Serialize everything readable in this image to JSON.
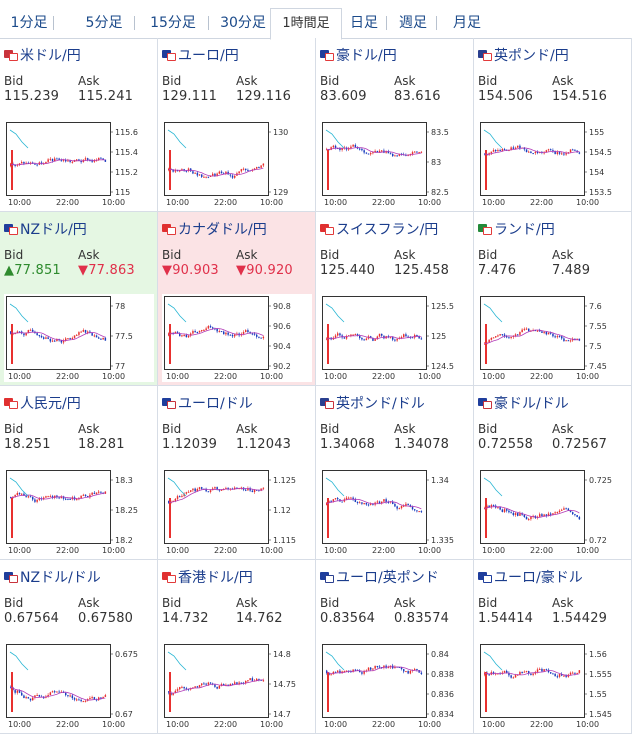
{
  "tabs": [
    "1分足",
    "5分足",
    "15分足",
    "30分足",
    "1時間足",
    "日足",
    "週足",
    "月足"
  ],
  "active_tab": 4,
  "bid_label": "Bid",
  "ask_label": "Ask",
  "x_labels": [
    "10:00",
    "22:00",
    "10:00"
  ],
  "colors": {
    "up": "#e8302e",
    "down": "#1a3dbf",
    "ma": "#b23bb8",
    "cyan": "#27b6d3",
    "frame": "#333"
  },
  "pairs": [
    {
      "name": "米ドル/円",
      "flags": [
        "us",
        "jp"
      ],
      "bid": "115.239",
      "ask": "115.241",
      "ticks": [
        "115.6",
        "115.4",
        "115.2",
        "115"
      ],
      "state": "none"
    },
    {
      "name": "ユーロ/円",
      "flags": [
        "eu",
        "jp"
      ],
      "bid": "129.111",
      "ask": "129.116",
      "ticks": [
        "130",
        "129"
      ],
      "state": "none"
    },
    {
      "name": "豪ドル/円",
      "flags": [
        "au",
        "jp"
      ],
      "bid": "83.609",
      "ask": "83.616",
      "ticks": [
        "83.5",
        "83",
        "82.5"
      ],
      "state": "none"
    },
    {
      "name": "英ポンド/円",
      "flags": [
        "gb",
        "jp"
      ],
      "bid": "154.506",
      "ask": "154.516",
      "ticks": [
        "155",
        "154.5",
        "154",
        "153.5"
      ],
      "state": "none"
    },
    {
      "name": "NZドル/円",
      "flags": [
        "nz",
        "jp"
      ],
      "bid": "▲77.851",
      "ask": "▼77.863",
      "ticks": [
        "78",
        "77.5",
        "77"
      ],
      "state": "up"
    },
    {
      "name": "カナダドル/円",
      "flags": [
        "ca",
        "jp"
      ],
      "bid": "▼90.903",
      "ask": "▼90.920",
      "ticks": [
        "90.8",
        "90.6",
        "90.4",
        "90.2"
      ],
      "state": "down"
    },
    {
      "name": "スイスフラン/円",
      "flags": [
        "ch",
        "jp"
      ],
      "bid": "125.440",
      "ask": "125.458",
      "ticks": [
        "125.5",
        "125",
        "124.5"
      ],
      "state": "none"
    },
    {
      "name": "ランド/円",
      "flags": [
        "za",
        "jp"
      ],
      "bid": "7.476",
      "ask": "7.489",
      "ticks": [
        "7.6",
        "7.55",
        "7.5",
        "7.45"
      ],
      "state": "none"
    },
    {
      "name": "人民元/円",
      "flags": [
        "cn",
        "jp"
      ],
      "bid": "18.251",
      "ask": "18.281",
      "ticks": [
        "18.3",
        "18.25",
        "18.2"
      ],
      "state": "none"
    },
    {
      "name": "ユーロ/ドル",
      "flags": [
        "eu",
        "us"
      ],
      "bid": "1.12039",
      "ask": "1.12043",
      "ticks": [
        "1.125",
        "1.12",
        "1.115"
      ],
      "state": "none"
    },
    {
      "name": "英ポンド/ドル",
      "flags": [
        "gb",
        "us"
      ],
      "bid": "1.34068",
      "ask": "1.34078",
      "ticks": [
        "1.34",
        "1.335"
      ],
      "state": "none"
    },
    {
      "name": "豪ドル/ドル",
      "flags": [
        "au",
        "us"
      ],
      "bid": "0.72558",
      "ask": "0.72567",
      "ticks": [
        "0.725",
        "0.72"
      ],
      "state": "none"
    },
    {
      "name": "NZドル/ドル",
      "flags": [
        "nz",
        "us"
      ],
      "bid": "0.67564",
      "ask": "0.67580",
      "ticks": [
        "0.675",
        "0.67"
      ],
      "state": "none"
    },
    {
      "name": "香港ドル/円",
      "flags": [
        "hk",
        "jp"
      ],
      "bid": "14.732",
      "ask": "14.762",
      "ticks": [
        "14.8",
        "14.75",
        "14.7"
      ],
      "state": "none"
    },
    {
      "name": "ユーロ/英ポンド",
      "flags": [
        "eu",
        "gb"
      ],
      "bid": "0.83564",
      "ask": "0.83574",
      "ticks": [
        "0.84",
        "0.838",
        "0.836",
        "0.834"
      ],
      "state": "none"
    },
    {
      "name": "ユーロ/豪ドル",
      "flags": [
        "eu",
        "au"
      ],
      "bid": "1.54414",
      "ask": "1.54429",
      "ticks": [
        "1.56",
        "1.555",
        "1.55",
        "1.545"
      ],
      "state": "none"
    }
  ],
  "flag_colors": {
    "us": "#c8333c",
    "jp": "#e23a3a",
    "eu": "#1f3e9c",
    "au": "#1f3e9c",
    "gb": "#2a3f8f",
    "nz": "#1f3e9c",
    "ca": "#e03030",
    "ch": "#e03030",
    "za": "#238a3a",
    "cn": "#e03030",
    "hk": "#e03030"
  }
}
